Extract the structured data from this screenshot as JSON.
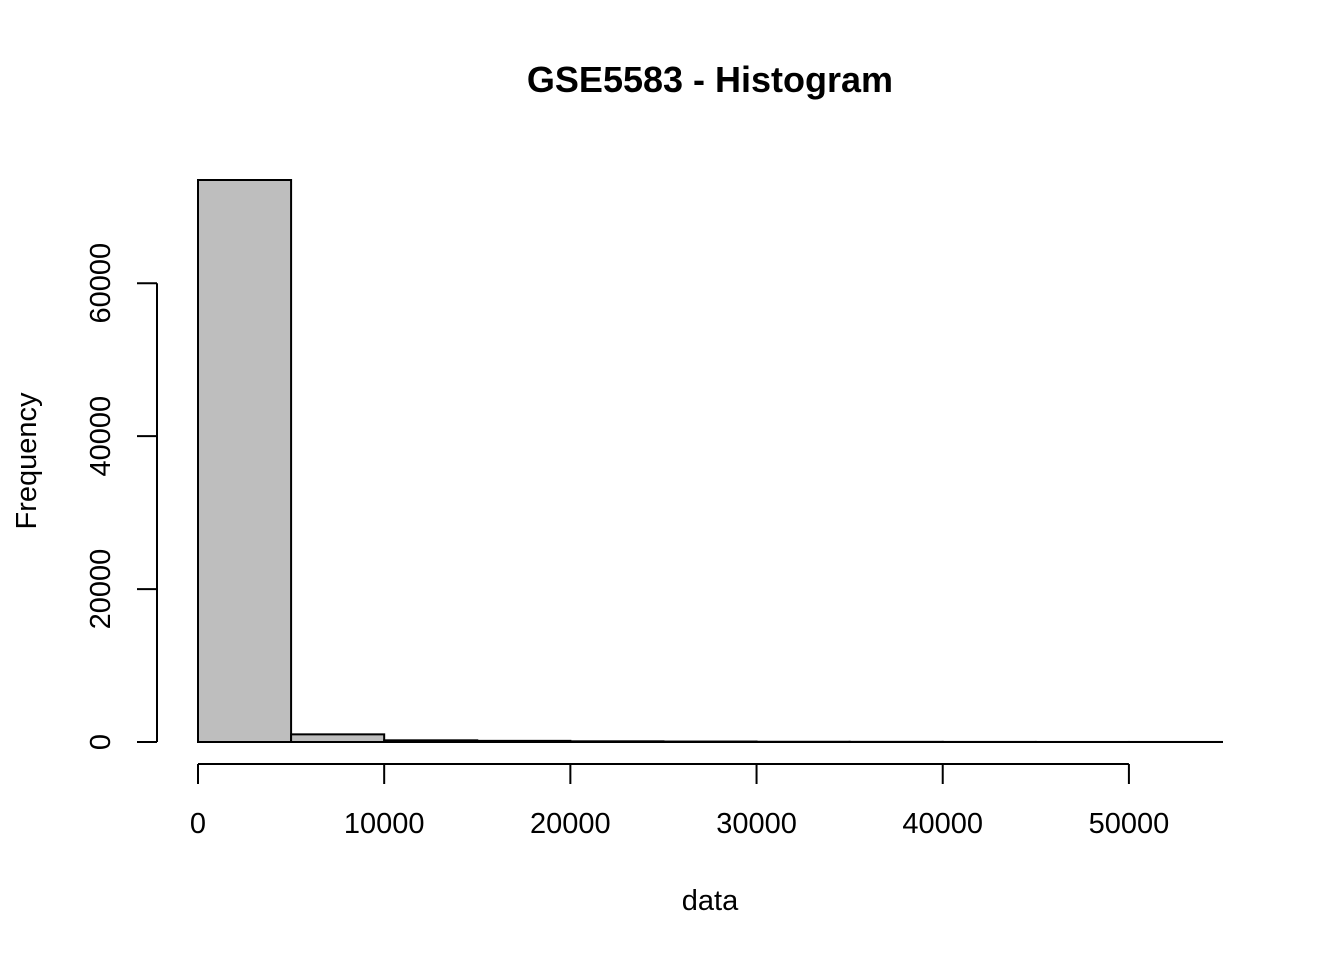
{
  "chart_data": {
    "type": "bar",
    "title": "GSE5583 - Histogram",
    "xlabel": "data",
    "ylabel": "Frequency",
    "bin_edges": [
      0,
      5000,
      10000,
      15000,
      20000,
      25000,
      30000,
      35000,
      40000,
      45000,
      50000,
      55000
    ],
    "values": [
      73500,
      1000,
      220,
      150,
      90,
      60,
      30,
      20,
      10,
      5,
      5
    ],
    "xlim": [
      0,
      55000
    ],
    "ylim": [
      0,
      73500
    ],
    "x_ticks": [
      0,
      10000,
      20000,
      30000,
      40000,
      50000
    ],
    "x_tick_labels": [
      "0",
      "10000",
      "20000",
      "30000",
      "40000",
      "50000"
    ],
    "y_ticks": [
      0,
      20000,
      40000,
      60000
    ],
    "y_tick_labels": [
      "0",
      "20000",
      "40000",
      "60000"
    ],
    "bar_fill": "#bebebe",
    "bar_stroke": "#000000",
    "grid": false,
    "legend": "none"
  }
}
